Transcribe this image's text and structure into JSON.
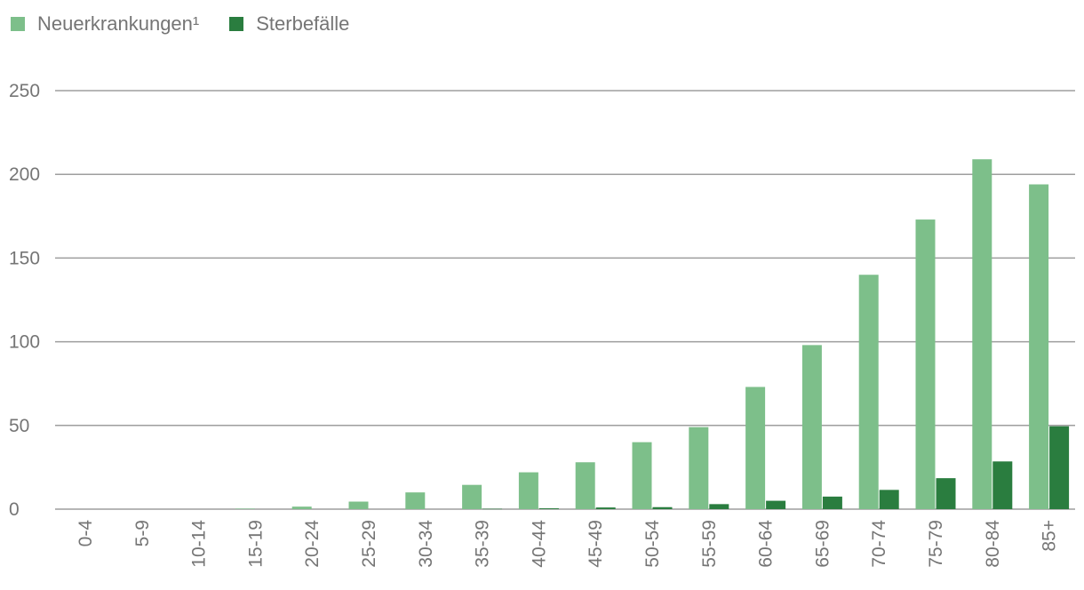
{
  "colors": {
    "neuerkrankungen": "#7dbf8a",
    "sterbefaelle": "#2a7d3f",
    "grid": "#9e9e9e",
    "text": "#757575"
  },
  "chart_data": {
    "type": "bar",
    "categories": [
      "0-4",
      "5-9",
      "10-14",
      "15-19",
      "20-24",
      "25-29",
      "30-34",
      "35-39",
      "40-44",
      "45-49",
      "50-54",
      "55-59",
      "60-64",
      "65-69",
      "70-74",
      "75-79",
      "80-84",
      "85+"
    ],
    "series": [
      {
        "name": "Neuerkrankungen¹",
        "values": [
          0,
          0,
          0,
          0.3,
          1.5,
          4.5,
          10,
          14.5,
          22,
          28,
          40,
          49,
          73,
          98,
          140,
          173,
          209,
          194
        ]
      },
      {
        "name": "Sterbefälle",
        "values": [
          0,
          0,
          0,
          0,
          0,
          0,
          0,
          0.2,
          0.5,
          1,
          1.2,
          3,
          5,
          7.5,
          11.5,
          18.5,
          28.5,
          49.5
        ]
      }
    ],
    "yticks": [
      0,
      50,
      100,
      150,
      200,
      250
    ],
    "ylim": [
      0,
      250
    ],
    "grid": true,
    "legend_position": "top-left",
    "title": "",
    "xlabel": "",
    "ylabel": ""
  }
}
